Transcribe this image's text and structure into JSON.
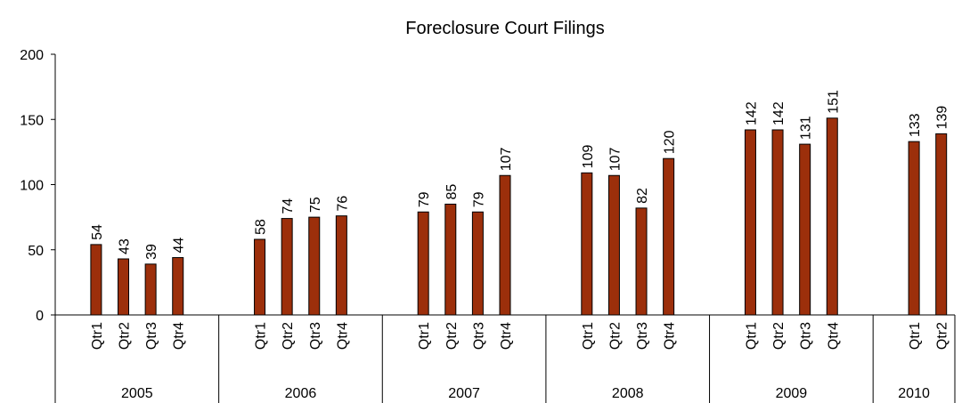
{
  "chart_data": {
    "type": "bar",
    "title": "Foreclosure Court Filings",
    "groups": [
      {
        "name": "2005",
        "categories": [
          "Qtr1",
          "Qtr2",
          "Qtr3",
          "Qtr4"
        ],
        "values": [
          54,
          43,
          39,
          44
        ]
      },
      {
        "name": "2006",
        "categories": [
          "Qtr1",
          "Qtr2",
          "Qtr3",
          "Qtr4"
        ],
        "values": [
          58,
          74,
          75,
          76
        ]
      },
      {
        "name": "2007",
        "categories": [
          "Qtr1",
          "Qtr2",
          "Qtr3",
          "Qtr4"
        ],
        "values": [
          79,
          85,
          79,
          107
        ]
      },
      {
        "name": "2008",
        "categories": [
          "Qtr1",
          "Qtr2",
          "Qtr3",
          "Qtr4"
        ],
        "values": [
          109,
          107,
          82,
          120
        ]
      },
      {
        "name": "2009",
        "categories": [
          "Qtr1",
          "Qtr2",
          "Qtr3",
          "Qtr4"
        ],
        "values": [
          142,
          142,
          131,
          151
        ]
      },
      {
        "name": "2010",
        "categories": [
          "Qtr1",
          "Qtr2"
        ],
        "values": [
          133,
          139
        ]
      }
    ],
    "color": "#9c2f0b",
    "ylim": [
      0,
      200
    ],
    "yticks": [
      0,
      50,
      100,
      150,
      200
    ],
    "grid": false
  }
}
